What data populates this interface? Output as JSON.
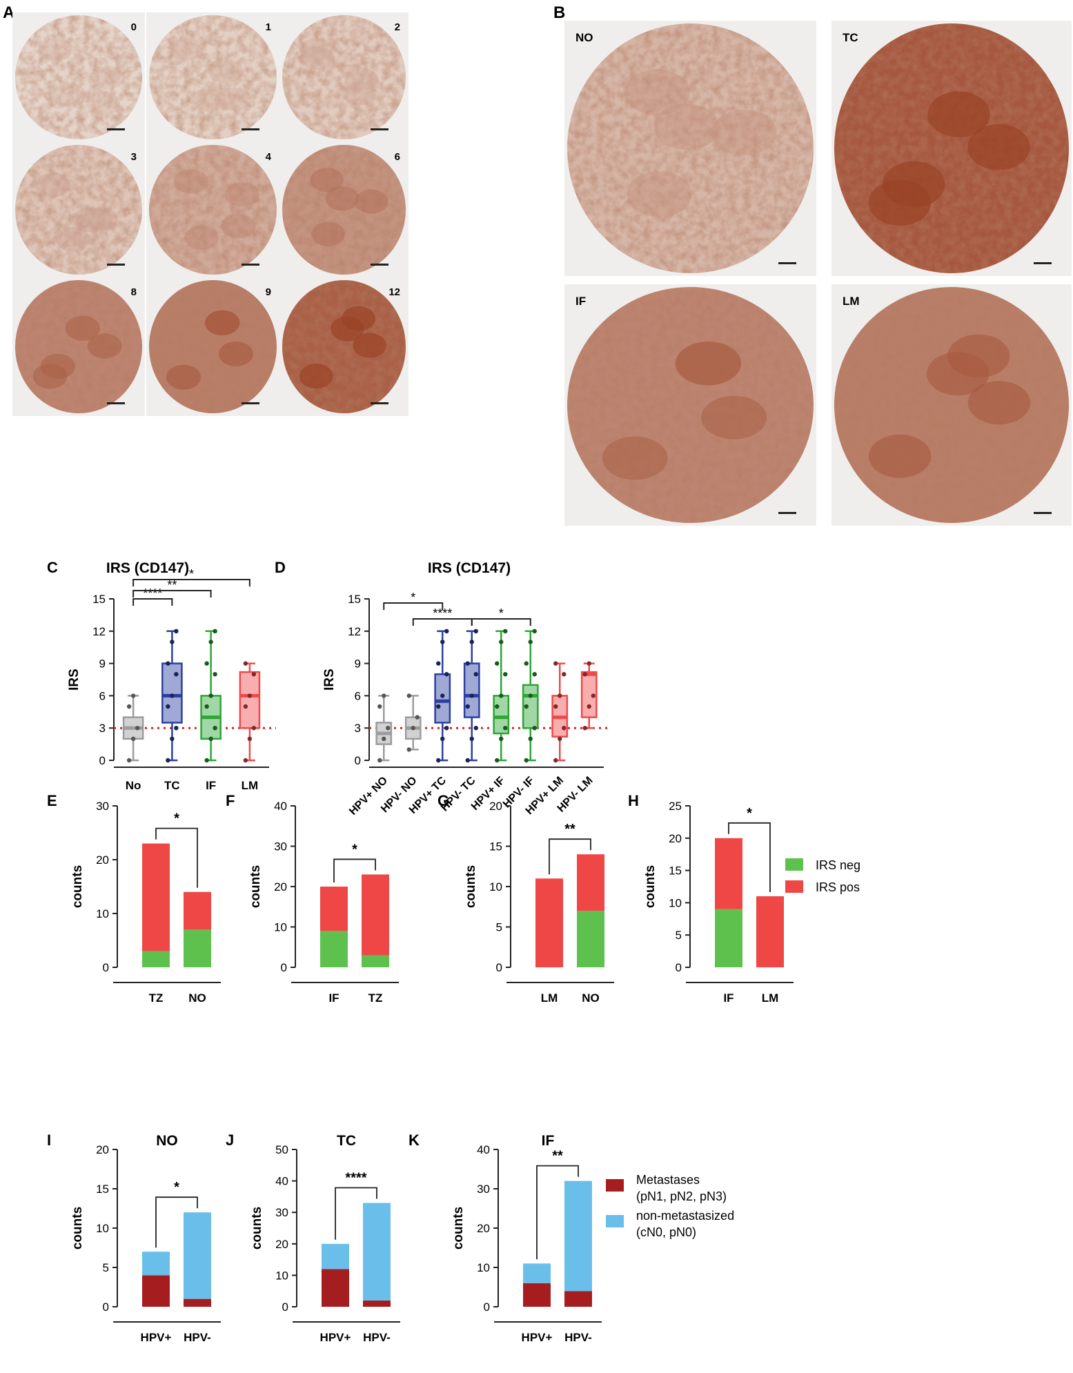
{
  "colors": {
    "dark_stain": "#9a4226",
    "light_stain": "#e7d7cc",
    "background": "#efeeec",
    "irs_neg": "#5fc14d",
    "irs_pos": "#ef4646",
    "metastases": "#a61d20",
    "non_metastasized": "#69bfea",
    "no_box": "#9c9c9c",
    "tc_box": "#2b3fa1",
    "if_box": "#2ca635",
    "lm_box": "#ef4a4a",
    "cutoff_line": "#e02020"
  },
  "panelA": {
    "label": "A",
    "tiles": [
      {
        "label": "0",
        "stain": 0.02
      },
      {
        "label": "1",
        "stain": 0.05
      },
      {
        "label": "2",
        "stain": 0.08
      },
      {
        "label": "3",
        "stain": 0.12
      },
      {
        "label": "4",
        "stain": 0.3
      },
      {
        "label": "6",
        "stain": 0.45
      },
      {
        "label": "8",
        "stain": 0.55
      },
      {
        "label": "9",
        "stain": 0.6
      },
      {
        "label": "12",
        "stain": 0.8
      }
    ]
  },
  "panelB": {
    "label": "B",
    "tiles": [
      {
        "label": "NO",
        "stain": 0.22
      },
      {
        "label": "TC",
        "stain": 0.85
      },
      {
        "label": "IF",
        "stain": 0.55
      },
      {
        "label": "LM",
        "stain": 0.6
      }
    ]
  },
  "panelC": {
    "label": "C",
    "chart_data": {
      "type": "box",
      "title": "IRS (CD147)",
      "ylabel": "IRS",
      "ylim": [
        0,
        15
      ],
      "yticks": [
        "0",
        "3",
        "6",
        "9",
        "12",
        "15"
      ],
      "cutoff": 3,
      "categories": [
        "No",
        "TC",
        "IF",
        "LM"
      ],
      "boxes": [
        {
          "min": 0,
          "q1": 2,
          "median": 3,
          "q3": 4,
          "max": 6
        },
        {
          "min": 0,
          "q1": 3.5,
          "median": 6,
          "q3": 9,
          "max": 12
        },
        {
          "min": 0,
          "q1": 2,
          "median": 4,
          "q3": 6,
          "max": 12
        },
        {
          "min": 0,
          "q1": 3,
          "median": 6,
          "q3": 8.2,
          "max": 9
        }
      ],
      "significance": [
        {
          "from": "No",
          "to": "TC",
          "label": "****"
        },
        {
          "from": "No",
          "to": "IF",
          "label": "**"
        },
        {
          "from": "No",
          "to": "LM",
          "label": "*"
        }
      ]
    }
  },
  "panelD": {
    "label": "D",
    "chart_data": {
      "type": "box",
      "title": "IRS (CD147)",
      "ylabel": "IRS",
      "ylim": [
        0,
        15
      ],
      "yticks": [
        "0",
        "3",
        "6",
        "9",
        "12",
        "15"
      ],
      "cutoff": 3,
      "categories": [
        "HPV+ NO",
        "HPV- NO",
        "HPV+ TC",
        "HPV- TC",
        "HPV+ IF",
        "HPV- IF",
        "HPV+ LM",
        "HPV- LM"
      ],
      "boxes": [
        {
          "min": 0,
          "q1": 1.5,
          "median": 2.5,
          "q3": 3.5,
          "max": 6
        },
        {
          "min": 1,
          "q1": 2,
          "median": 3,
          "q3": 4,
          "max": 6
        },
        {
          "min": 0,
          "q1": 3.5,
          "median": 5.5,
          "q3": 8,
          "max": 12
        },
        {
          "min": 0,
          "q1": 4,
          "median": 6,
          "q3": 9,
          "max": 12
        },
        {
          "min": 0,
          "q1": 2.5,
          "median": 4,
          "q3": 6,
          "max": 12
        },
        {
          "min": 0,
          "q1": 3,
          "median": 6,
          "q3": 7,
          "max": 12
        },
        {
          "min": 0,
          "q1": 2.2,
          "median": 4,
          "q3": 6,
          "max": 9
        },
        {
          "min": 3,
          "q1": 4,
          "median": 8,
          "q3": 8.2,
          "max": 9
        }
      ],
      "significance": [
        {
          "from": "HPV+ NO",
          "to": "HPV+ TC",
          "label": "*"
        },
        {
          "from": "HPV- NO",
          "to": "HPV- TC",
          "label": "****"
        },
        {
          "from": "HPV- TC",
          "to": "HPV- IF",
          "label": "*"
        }
      ]
    }
  },
  "irs_legend": [
    {
      "label": "IRS neg",
      "color": "#5fc14d"
    },
    {
      "label": "IRS pos",
      "color": "#ef4646"
    }
  ],
  "met_legend": [
    {
      "label": "Metastases",
      "sub": "(pN1, pN2, pN3)",
      "color": "#a61d20"
    },
    {
      "label": "non-metastasized",
      "sub": "(cN0, pN0)",
      "color": "#69bfea"
    }
  ],
  "bar_panels": [
    {
      "label": "E",
      "title": "",
      "ylabel": "counts",
      "ylim": [
        0,
        30
      ],
      "yticks": [
        "0",
        "10",
        "20",
        "30"
      ],
      "categories": [
        "TZ",
        "NO"
      ],
      "stack": "irs",
      "series": [
        {
          "name": "IRS neg",
          "values": [
            3,
            7
          ]
        },
        {
          "name": "IRS pos",
          "values": [
            20,
            7
          ]
        }
      ],
      "significance": "*"
    },
    {
      "label": "F",
      "title": "",
      "ylabel": "counts",
      "ylim": [
        0,
        40
      ],
      "yticks": [
        "0",
        "10",
        "20",
        "30",
        "40"
      ],
      "categories": [
        "IF",
        "TZ"
      ],
      "stack": "irs",
      "series": [
        {
          "name": "IRS neg",
          "values": [
            9,
            3
          ]
        },
        {
          "name": "IRS pos",
          "values": [
            11,
            20
          ]
        }
      ],
      "significance": "*"
    },
    {
      "label": "G",
      "title": "",
      "ylabel": "counts",
      "ylim": [
        0,
        20
      ],
      "yticks": [
        "0",
        "5",
        "10",
        "15",
        "20"
      ],
      "categories": [
        "LM",
        "NO"
      ],
      "stack": "irs",
      "series": [
        {
          "name": "IRS neg",
          "values": [
            0,
            7
          ]
        },
        {
          "name": "IRS pos",
          "values": [
            11,
            7
          ]
        }
      ],
      "significance": "**"
    },
    {
      "label": "H",
      "title": "",
      "ylabel": "counts",
      "ylim": [
        0,
        25
      ],
      "yticks": [
        "0",
        "5",
        "10",
        "15",
        "20",
        "25"
      ],
      "categories": [
        "IF",
        "LM"
      ],
      "stack": "irs",
      "series": [
        {
          "name": "IRS neg",
          "values": [
            9,
            0
          ]
        },
        {
          "name": "IRS pos",
          "values": [
            11,
            11
          ]
        }
      ],
      "significance": "*"
    },
    {
      "label": "I",
      "title": "NO",
      "ylabel": "counts",
      "ylim": [
        0,
        20
      ],
      "yticks": [
        "0",
        "5",
        "10",
        "15",
        "20"
      ],
      "categories": [
        "HPV+",
        "HPV-"
      ],
      "stack": "met",
      "series": [
        {
          "name": "Metastases",
          "values": [
            4,
            1
          ]
        },
        {
          "name": "non-metastasized",
          "values": [
            3,
            11
          ]
        }
      ],
      "significance": "*"
    },
    {
      "label": "J",
      "title": "TC",
      "ylabel": "counts",
      "ylim": [
        0,
        50
      ],
      "yticks": [
        "0",
        "10",
        "20",
        "30",
        "40",
        "50"
      ],
      "categories": [
        "HPV+",
        "HPV-"
      ],
      "stack": "met",
      "series": [
        {
          "name": "Metastases",
          "values": [
            12,
            2
          ]
        },
        {
          "name": "non-metastasized",
          "values": [
            8,
            31
          ]
        }
      ],
      "significance": "****"
    },
    {
      "label": "K",
      "title": "IF",
      "ylabel": "counts",
      "ylim": [
        0,
        40
      ],
      "yticks": [
        "0",
        "10",
        "20",
        "30",
        "40"
      ],
      "categories": [
        "HPV+",
        "HPV-"
      ],
      "stack": "met",
      "series": [
        {
          "name": "Metastases",
          "values": [
            6,
            4
          ]
        },
        {
          "name": "non-metastasized",
          "values": [
            5,
            28
          ]
        }
      ],
      "significance": "**"
    }
  ]
}
